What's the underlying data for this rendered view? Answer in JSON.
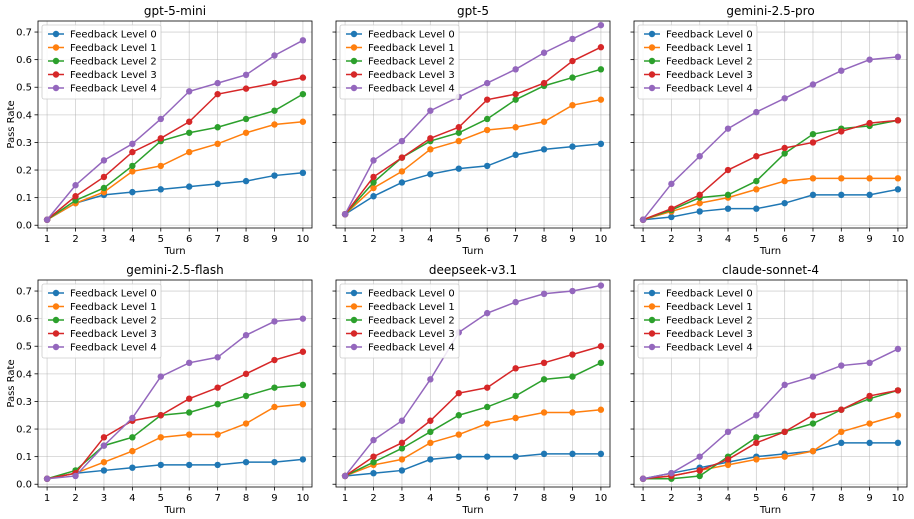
{
  "figure": {
    "series_names": [
      "Feedback Level 0",
      "Feedback Level 1",
      "Feedback Level 2",
      "Feedback Level 3",
      "Feedback Level 4"
    ],
    "colors": [
      "#1f77b4",
      "#ff7f0e",
      "#2ca02c",
      "#d62728",
      "#9467bd"
    ]
  },
  "chart_data": [
    {
      "type": "line",
      "title": "gpt-5-mini",
      "xlabel": "Turn",
      "ylabel": "Pass Rate",
      "x": [
        1,
        2,
        3,
        4,
        5,
        6,
        7,
        8,
        9,
        10
      ],
      "xticks": [
        "1",
        "2",
        "3",
        "4",
        "5",
        "6",
        "7",
        "8",
        "9",
        "10"
      ],
      "yticks": [
        "0.0",
        "0.1",
        "0.2",
        "0.3",
        "0.4",
        "0.5",
        "0.6",
        "0.7"
      ],
      "ylim": [
        -0.01,
        0.74
      ],
      "grid": true,
      "legend": "top-left",
      "series": [
        {
          "name": "Feedback Level 0",
          "values": [
            0.02,
            0.08,
            0.11,
            0.12,
            0.13,
            0.14,
            0.15,
            0.16,
            0.18,
            0.19
          ]
        },
        {
          "name": "Feedback Level 1",
          "values": [
            0.02,
            0.08,
            0.12,
            0.195,
            0.215,
            0.265,
            0.295,
            0.335,
            0.365,
            0.375
          ]
        },
        {
          "name": "Feedback Level 2",
          "values": [
            0.02,
            0.09,
            0.135,
            0.215,
            0.305,
            0.335,
            0.355,
            0.385,
            0.415,
            0.475
          ]
        },
        {
          "name": "Feedback Level 3",
          "values": [
            0.02,
            0.105,
            0.175,
            0.265,
            0.315,
            0.375,
            0.475,
            0.495,
            0.515,
            0.535
          ]
        },
        {
          "name": "Feedback Level 4",
          "values": [
            0.02,
            0.145,
            0.235,
            0.295,
            0.385,
            0.485,
            0.515,
            0.545,
            0.615,
            0.67
          ]
        }
      ]
    },
    {
      "type": "line",
      "title": "gpt-5",
      "xlabel": "Turn",
      "ylabel": "",
      "x": [
        1,
        2,
        3,
        4,
        5,
        6,
        7,
        8,
        9,
        10
      ],
      "xticks": [
        "1",
        "2",
        "3",
        "4",
        "5",
        "6",
        "7",
        "8",
        "9",
        "10"
      ],
      "yticks": [],
      "ylim": [
        -0.01,
        0.74
      ],
      "grid": true,
      "legend": "top-left",
      "series": [
        {
          "name": "Feedback Level 0",
          "values": [
            0.04,
            0.105,
            0.155,
            0.185,
            0.205,
            0.215,
            0.255,
            0.275,
            0.285,
            0.295
          ]
        },
        {
          "name": "Feedback Level 1",
          "values": [
            0.04,
            0.135,
            0.195,
            0.275,
            0.305,
            0.345,
            0.355,
            0.375,
            0.435,
            0.455
          ]
        },
        {
          "name": "Feedback Level 2",
          "values": [
            0.04,
            0.155,
            0.245,
            0.305,
            0.335,
            0.385,
            0.455,
            0.505,
            0.535,
            0.565
          ]
        },
        {
          "name": "Feedback Level 3",
          "values": [
            0.04,
            0.175,
            0.245,
            0.315,
            0.355,
            0.455,
            0.475,
            0.515,
            0.595,
            0.645
          ]
        },
        {
          "name": "Feedback Level 4",
          "values": [
            0.04,
            0.235,
            0.305,
            0.415,
            0.465,
            0.515,
            0.565,
            0.625,
            0.675,
            0.725
          ]
        }
      ]
    },
    {
      "type": "line",
      "title": "gemini-2.5-pro",
      "xlabel": "Turn",
      "ylabel": "",
      "x": [
        1,
        2,
        3,
        4,
        5,
        6,
        7,
        8,
        9,
        10
      ],
      "xticks": [
        "1",
        "2",
        "3",
        "4",
        "5",
        "6",
        "7",
        "8",
        "9",
        "10"
      ],
      "yticks": [],
      "ylim": [
        -0.01,
        0.74
      ],
      "grid": true,
      "legend": "top-left",
      "series": [
        {
          "name": "Feedback Level 0",
          "values": [
            0.02,
            0.03,
            0.05,
            0.06,
            0.06,
            0.08,
            0.11,
            0.11,
            0.11,
            0.13
          ]
        },
        {
          "name": "Feedback Level 1",
          "values": [
            0.02,
            0.05,
            0.08,
            0.1,
            0.13,
            0.16,
            0.17,
            0.17,
            0.17,
            0.17
          ]
        },
        {
          "name": "Feedback Level 2",
          "values": [
            0.02,
            0.055,
            0.1,
            0.11,
            0.16,
            0.26,
            0.33,
            0.35,
            0.36,
            0.38
          ]
        },
        {
          "name": "Feedback Level 3",
          "values": [
            0.02,
            0.06,
            0.11,
            0.2,
            0.25,
            0.28,
            0.3,
            0.34,
            0.37,
            0.38
          ]
        },
        {
          "name": "Feedback Level 4",
          "values": [
            0.02,
            0.15,
            0.25,
            0.35,
            0.41,
            0.46,
            0.51,
            0.56,
            0.6,
            0.61
          ]
        }
      ]
    },
    {
      "type": "line",
      "title": "gemini-2.5-flash",
      "xlabel": "Turn",
      "ylabel": "Pass Rate",
      "x": [
        1,
        2,
        3,
        4,
        5,
        6,
        7,
        8,
        9,
        10
      ],
      "xticks": [
        "1",
        "2",
        "3",
        "4",
        "5",
        "6",
        "7",
        "8",
        "9",
        "10"
      ],
      "yticks": [
        "0.0",
        "0.1",
        "0.2",
        "0.3",
        "0.4",
        "0.5",
        "0.6",
        "0.7"
      ],
      "ylim": [
        -0.01,
        0.74
      ],
      "grid": true,
      "legend": "top-left",
      "series": [
        {
          "name": "Feedback Level 0",
          "values": [
            0.02,
            0.04,
            0.05,
            0.06,
            0.07,
            0.07,
            0.07,
            0.08,
            0.08,
            0.09
          ]
        },
        {
          "name": "Feedback Level 1",
          "values": [
            0.02,
            0.04,
            0.08,
            0.12,
            0.17,
            0.18,
            0.18,
            0.22,
            0.28,
            0.29
          ]
        },
        {
          "name": "Feedback Level 2",
          "values": [
            0.02,
            0.05,
            0.14,
            0.17,
            0.25,
            0.26,
            0.29,
            0.32,
            0.35,
            0.36
          ]
        },
        {
          "name": "Feedback Level 3",
          "values": [
            0.02,
            0.04,
            0.17,
            0.23,
            0.25,
            0.31,
            0.35,
            0.4,
            0.45,
            0.48
          ]
        },
        {
          "name": "Feedback Level 4",
          "values": [
            0.02,
            0.03,
            0.14,
            0.24,
            0.39,
            0.44,
            0.46,
            0.54,
            0.59,
            0.6
          ]
        }
      ]
    },
    {
      "type": "line",
      "title": "deepseek-v3.1",
      "xlabel": "Turn",
      "ylabel": "",
      "x": [
        1,
        2,
        3,
        4,
        5,
        6,
        7,
        8,
        9,
        10
      ],
      "xticks": [
        "1",
        "2",
        "3",
        "4",
        "5",
        "6",
        "7",
        "8",
        "9",
        "10"
      ],
      "yticks": [],
      "ylim": [
        -0.01,
        0.74
      ],
      "grid": true,
      "legend": "top-left",
      "series": [
        {
          "name": "Feedback Level 0",
          "values": [
            0.03,
            0.04,
            0.05,
            0.09,
            0.1,
            0.1,
            0.1,
            0.11,
            0.11,
            0.11
          ]
        },
        {
          "name": "Feedback Level 1",
          "values": [
            0.03,
            0.07,
            0.09,
            0.15,
            0.18,
            0.22,
            0.24,
            0.26,
            0.26,
            0.27
          ]
        },
        {
          "name": "Feedback Level 2",
          "values": [
            0.03,
            0.08,
            0.13,
            0.19,
            0.25,
            0.28,
            0.32,
            0.38,
            0.39,
            0.44
          ]
        },
        {
          "name": "Feedback Level 3",
          "values": [
            0.03,
            0.1,
            0.15,
            0.23,
            0.33,
            0.35,
            0.42,
            0.44,
            0.47,
            0.5
          ]
        },
        {
          "name": "Feedback Level 4",
          "values": [
            0.03,
            0.16,
            0.23,
            0.38,
            0.55,
            0.62,
            0.66,
            0.69,
            0.7,
            0.72
          ]
        }
      ]
    },
    {
      "type": "line",
      "title": "claude-sonnet-4",
      "xlabel": "Turn",
      "ylabel": "",
      "x": [
        1,
        2,
        3,
        4,
        5,
        6,
        7,
        8,
        9,
        10
      ],
      "xticks": [
        "1",
        "2",
        "3",
        "4",
        "5",
        "6",
        "7",
        "8",
        "9",
        "10"
      ],
      "yticks": [],
      "ylim": [
        -0.01,
        0.74
      ],
      "grid": true,
      "legend": "top-left",
      "series": [
        {
          "name": "Feedback Level 0",
          "values": [
            0.02,
            0.04,
            0.06,
            0.08,
            0.1,
            0.11,
            0.12,
            0.15,
            0.15,
            0.15
          ]
        },
        {
          "name": "Feedback Level 1",
          "values": [
            0.02,
            0.03,
            0.05,
            0.07,
            0.09,
            0.1,
            0.12,
            0.19,
            0.22,
            0.25
          ]
        },
        {
          "name": "Feedback Level 2",
          "values": [
            0.02,
            0.02,
            0.03,
            0.1,
            0.17,
            0.19,
            0.22,
            0.27,
            0.31,
            0.34
          ]
        },
        {
          "name": "Feedback Level 3",
          "values": [
            0.02,
            0.03,
            0.05,
            0.09,
            0.15,
            0.19,
            0.25,
            0.27,
            0.32,
            0.34
          ]
        },
        {
          "name": "Feedback Level 4",
          "values": [
            0.02,
            0.04,
            0.1,
            0.19,
            0.25,
            0.36,
            0.39,
            0.43,
            0.44,
            0.49
          ]
        }
      ]
    }
  ]
}
